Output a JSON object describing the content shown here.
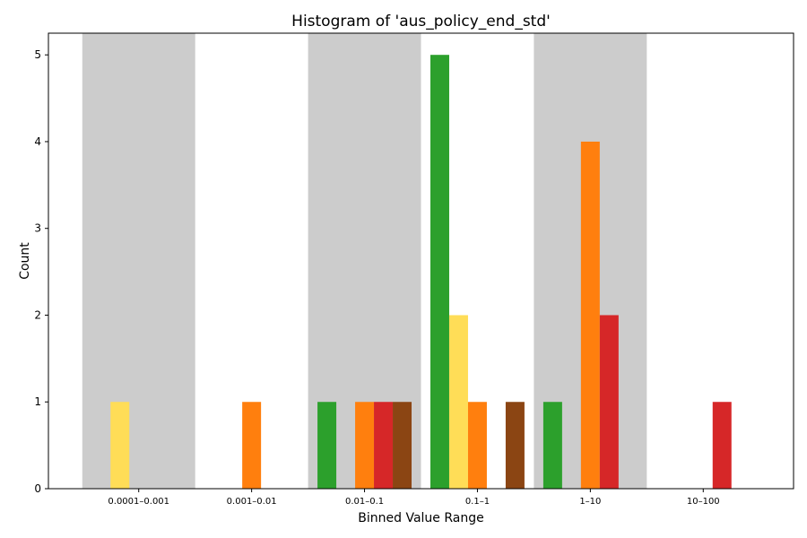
{
  "chart_data": {
    "type": "bar",
    "title": "Histogram of 'aus_policy_end_std'",
    "xlabel": "Binned Value Range",
    "ylabel": "Count",
    "categories": [
      "0.0001–0.001",
      "0.001–0.01",
      "0.01–0.1",
      "0.1–1",
      "1–10",
      "10–100"
    ],
    "ylim": [
      0,
      5.25
    ],
    "yticks": [
      0,
      1,
      2,
      3,
      4,
      5
    ],
    "grid": false,
    "legend": "none",
    "shaded_categories": [
      0,
      2,
      4
    ],
    "shade_color": "#cccccc",
    "series": [
      {
        "color": "#2ca02c",
        "values": [
          0,
          0,
          1,
          5,
          1,
          0
        ]
      },
      {
        "color": "#ffdd57",
        "values": [
          1,
          0,
          0,
          2,
          0,
          0
        ]
      },
      {
        "color": "#ff7f0e",
        "values": [
          0,
          1,
          1,
          1,
          4,
          0
        ]
      },
      {
        "color": "#d62728",
        "values": [
          0,
          0,
          1,
          0,
          2,
          1
        ]
      },
      {
        "color": "#8b4513",
        "values": [
          0,
          0,
          1,
          1,
          0,
          0
        ]
      }
    ]
  }
}
